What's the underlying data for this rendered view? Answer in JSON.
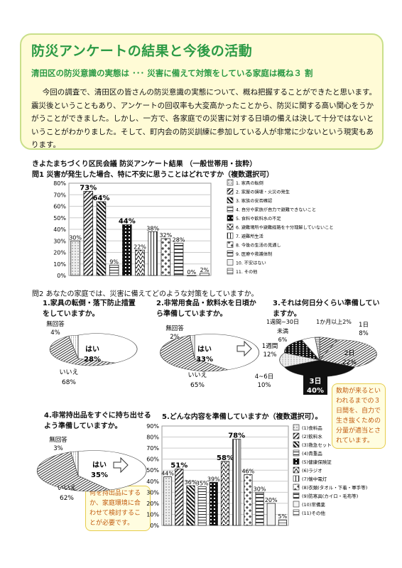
{
  "header": {
    "title": "防災アンケートの結果と今後の活動",
    "subtitle": "清田区の防災意識の実態は ･･･ 災害に備えて対策をしている家庭は概ね３ 割",
    "body": "今回の調査で、清田区の皆さんの防災意識の実態について、概ね把握することができたと思います。震災後ということもあり、アンケートの回収率も大変高かったことから、防災に関する高い関心をうかがうことができました。しかし、一方で、各家庭での災害に対する日頃の備えは決して十分ではないということがわかりました。そして、町内会の防災訓練に参加している人が非常に少ないという現実もあります。"
  },
  "survey": {
    "title": "きよたまちづくり区民会議 防災アンケート結果 （一般世帯用・抜粋）",
    "q1": "問1 災害が発生した場合、特に不安に思うことはどれですか（複数選択可）",
    "q2": "問2 あなたの家庭では、災害に備えてどのような対策をしていますか。",
    "sq1": "1.家具の転倒・落下防止措置をしていますか。",
    "sq2": "2.非常用食品・飲料水を日頃から準備していますか。",
    "sq3": "3.それは何日分くらい準備していますか。",
    "sq4": "4.非常持出品をすぐに持ち出せるよう準備していますか。",
    "sq5": "5.どんな内容を準備していますか（複数選択可）。"
  },
  "notes": {
    "n1": "数助が来るといわれるまでの３日間を、自力で生き抜くための分量が適当とされています。",
    "n2": "何を持出品にするか、家庭環境に合わせて検討することが必要です。"
  },
  "chart_data": [
    {
      "type": "bar",
      "title": "問1 災害が発生した場合、特に不安に思うことはどれですか（複数選択可）",
      "ylim": [
        0,
        80
      ],
      "yticks": [
        "0%",
        "10%",
        "20%",
        "30%",
        "40%",
        "50%",
        "60%",
        "70%",
        "80%"
      ],
      "categories": [
        "1. 家具の転倒",
        "2. 家屋の損壊・火災の発生",
        "3. 家族の安否確認",
        "4. 自分や家族が自力で避難できないこと",
        "5. 食料や飲料水の不足",
        "6. 避難場所や避難経路を十分理解していないこと",
        "7. 避難所生活",
        "8. 今後の生活の見通し",
        "9. 医療や救護体制",
        "10. 不安はない",
        "11. その他"
      ],
      "values": [
        30,
        73,
        64,
        9,
        44,
        22,
        38,
        32,
        28,
        0,
        2
      ],
      "labels": [
        "30%",
        "73%",
        "64%",
        "9%",
        "44%",
        "22%",
        "38%",
        "32%",
        "28%",
        "0%",
        "2%"
      ]
    },
    {
      "type": "pie",
      "title": "1.家具の転倒・落下防止措置をしていますか。",
      "labels": [
        "はい",
        "いいえ",
        "無回答"
      ],
      "values": [
        28,
        68,
        4
      ]
    },
    {
      "type": "pie",
      "title": "2.非常用食品・飲料水を日頃から準備していますか。",
      "labels": [
        "はい",
        "いいえ",
        "無回答"
      ],
      "values": [
        33,
        65,
        2
      ]
    },
    {
      "type": "pie",
      "title": "3.それは何日分くらい準備していますか。",
      "labels": [
        "1日",
        "2日",
        "3日",
        "4~6日",
        "1週間",
        "1週間~30日",
        "未満",
        "1か月以上"
      ],
      "values": [
        8,
        22,
        40,
        10,
        12,
        6,
        0,
        2
      ]
    },
    {
      "type": "pie",
      "title": "4.非常持出品をすぐに持ち出せるよう準備していますか。",
      "labels": [
        "はい",
        "いいえ",
        "無回答"
      ],
      "values": [
        35,
        62,
        3
      ]
    },
    {
      "type": "bar",
      "title": "5.どんな内容を準備していますか（複数選択可）。",
      "ylim": [
        0,
        90
      ],
      "yticks": [
        "0%",
        "10%",
        "20%",
        "30%",
        "40%",
        "50%",
        "60%",
        "70%",
        "80%",
        "90%"
      ],
      "categories": [
        "(1)食料品",
        "(2)飲料水",
        "(3)救急セット",
        "(4)貴重品",
        "(5)健康保険証",
        "(6)ラジオ",
        "(7)懐中電灯",
        "(8)衣類(タオル・下着・軍手等)",
        "(9)防寒具(カイロ・毛布等)",
        "(10)常備薬",
        "(11)その他"
      ],
      "values": [
        44,
        51,
        36,
        35,
        39,
        58,
        78,
        46,
        30,
        20,
        5
      ],
      "labels": [
        "44%",
        "51%",
        "36%",
        "35%",
        "39%",
        "58%",
        "78%",
        "46%",
        "30%",
        "20%",
        "5%"
      ]
    }
  ]
}
